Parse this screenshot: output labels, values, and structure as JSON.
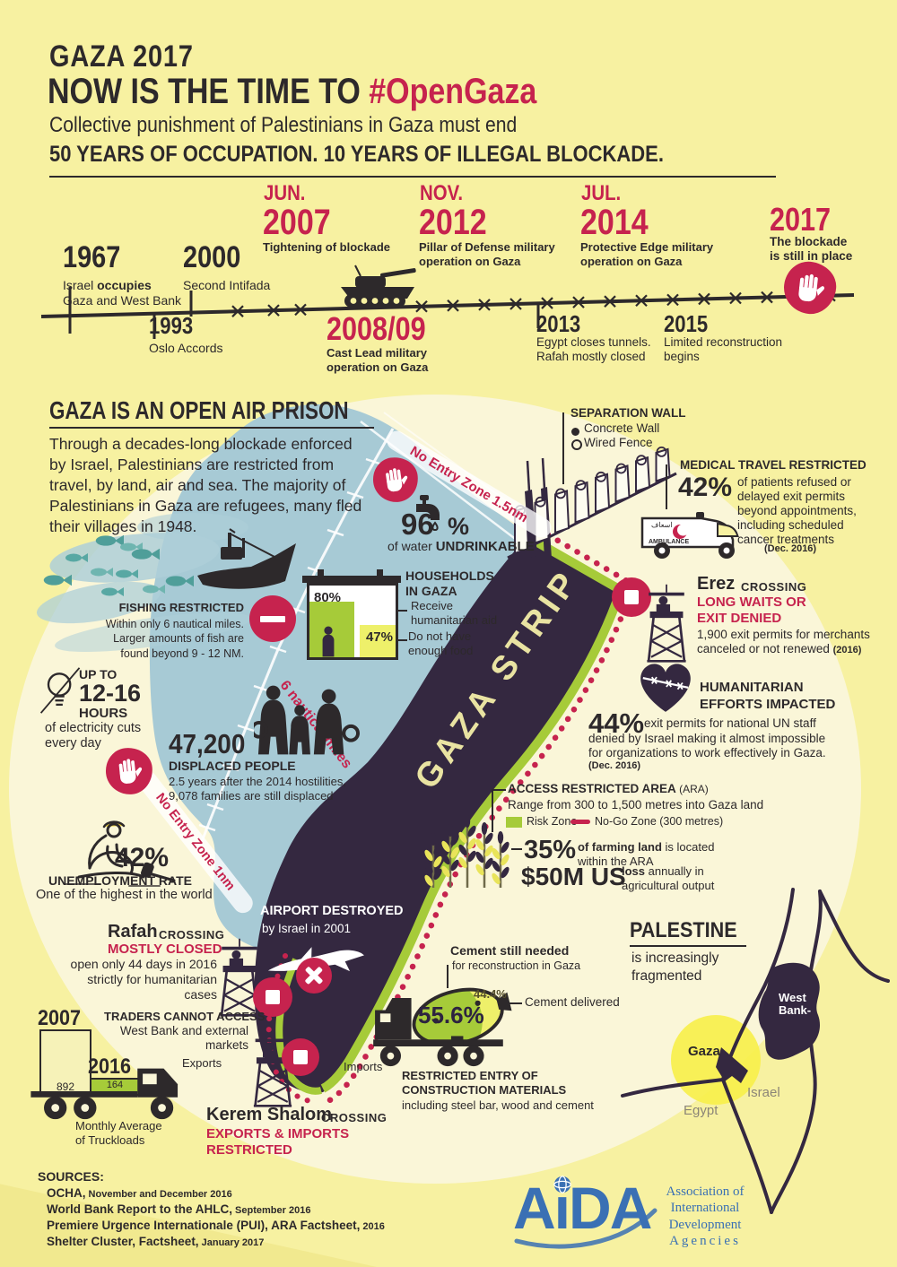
{
  "header": {
    "kicker": "GAZA 2017",
    "title": "NOW IS THE TIME TO ",
    "title_accent": "#OpenGaza",
    "subtitle": "Collective punishment of Palestinians in Gaza must end",
    "banner": "50 YEARS OF OCCUPATION. 10 YEARS OF ILLEGAL BLOCKADE."
  },
  "timeline": {
    "e1967": {
      "year": "1967",
      "l1a": "Israel ",
      "l1b": "occupies",
      "l2": "Gaza and West Bank"
    },
    "e2000": {
      "year": "2000",
      "desc": "Second Intifada"
    },
    "e2007": {
      "month": "JUN.",
      "year": "2007",
      "desc": "Tightening of blockade"
    },
    "e2012": {
      "month": "NOV.",
      "year": "2012",
      "desc": "Pillar of Defense military operation on Gaza"
    },
    "e2014": {
      "month": "JUL.",
      "year": "2014",
      "desc": "Protective Edge military operation on Gaza"
    },
    "e2017": {
      "year": "2017",
      "desc": "The blockade is still in place"
    },
    "e1993": {
      "year": "1993",
      "desc": "Oslo Accords"
    },
    "e200809": {
      "year": "2008/09",
      "desc": "Cast Lead military operation on Gaza"
    },
    "e2013": {
      "year": "2013",
      "desc": "Egypt closes tunnels. Rafah mostly closed"
    },
    "e2015": {
      "year": "2015",
      "desc": "Limited reconstruction begins"
    }
  },
  "prison": {
    "title": "GAZA IS AN OPEN AIR PRISON",
    "body": "Through a decades-long blockade enforced by Israel, Palestinians are restricted from travel, by land, air and sea. The majority of Palestinians in Gaza are refugees, many fled their villages in 1948."
  },
  "wall": {
    "title": "SEPARATION WALL",
    "concrete": "Concrete Wall",
    "wired": "Wired Fence"
  },
  "medical": {
    "title": "MEDICAL TRAVEL RESTRICTED",
    "pct": "42%",
    "body": "of patients refused or delayed exit permits beyond appointments, including scheduled cancer treatments",
    "date": "(Dec. 2016)",
    "amb": "AMBULANCE",
    "amb_ar": "اسعاف"
  },
  "water": {
    "pct": "96",
    "sign": "%",
    "l1": "of water ",
    "l2": "UNDRINKABLE"
  },
  "zones": {
    "z15": "No Entry Zone 1.5nm",
    "z6": "6 nautical miles",
    "z1": "No Entry Zone 1nm"
  },
  "households": {
    "t1": "HOUSEHOLDS",
    "t2": "IN GAZA",
    "p80": "80%",
    "p47": "47%",
    "aid1": "Receive",
    "aid2": "humanitarian aid",
    "food1": "Do not have",
    "food2": "enough food"
  },
  "fishing": {
    "title": "FISHING RESTRICTED",
    "body": "Within only 6 nautical miles. Larger amounts of fish are found beyond 9 - 12 NM."
  },
  "electricity": {
    "up": "UP TO",
    "hrs": "12-16",
    "hours": "HOURS",
    "b1": "of electricity cuts",
    "b2": "every day"
  },
  "displaced": {
    "num": "47,200",
    "label": "DISPLACED PEOPLE",
    "body": "2.5 years after the 2014 hostilities, 9,078 families are still displaced"
  },
  "unemployment": {
    "pct": "42%",
    "label": "UNEMPLOYMENT RATE",
    "body": "One of the highest in the world"
  },
  "gaza_strip": "GAZA STRIP",
  "erez": {
    "name": "Erez",
    "type": "CROSSING",
    "s1": "LONG WAITS OR",
    "s2": "EXIT DENIED",
    "b1": "1,900 exit permits for merchants",
    "b2": "canceled or not renewed ",
    "date": "(2016)"
  },
  "humanitarian": {
    "t1": "HUMANITARIAN",
    "t2": "EFFORTS IMPACTED",
    "pct": "44%",
    "b1": "exit permits for national UN staff",
    "b2": "denied by Israel making it almost impossible for organizations to work effectively in Gaza.",
    "date": "(Dec. 2016)"
  },
  "ara": {
    "title": "ACCESS RESTRICTED AREA",
    "abbr": " (ARA)",
    "range": "Range from 300 to 1,500 metres into Gaza land",
    "risk": "Risk Zone",
    "nogo": "No-Go Zone (300 metres)",
    "pct": "35%",
    "farm_b": "of farming land",
    "farm_r": " is located within the ARA",
    "loss_big": "$50M US",
    "loss_b": "loss",
    "loss_r": " annually in agricultural output"
  },
  "airport": {
    "t": "AIRPORT DESTROYED",
    "s": "by Israel in 2001"
  },
  "rafah": {
    "name": "Rafah",
    "type": "CROSSING",
    "status": "MOSTLY CLOSED",
    "b1": "open only 44 days in 2016",
    "b2": "strictly for humanitarian cases"
  },
  "traders": {
    "t": "TRADERS CANNOT ACCESS",
    "b": "West Bank and external markets",
    "y2007": "2007",
    "v2007": "892",
    "y2016": "2016",
    "v2016": "164",
    "cap1": "Monthly Average",
    "cap2": "of Truckloads",
    "exports": "Exports",
    "imports": "Imports"
  },
  "kerem": {
    "name": "Kerem Shalom",
    "type": "CROSSING",
    "s1": "EXPORTS & IMPORTS",
    "s2": "RESTRICTED"
  },
  "cement": {
    "t1": "Cement still needed",
    "t2": "for reconstruction in Gaza",
    "needed": "55.6%",
    "delivered_pct": "44.4%",
    "delivered": "Cement delivered",
    "r1": "RESTRICTED ENTRY OF",
    "r2": "CONSTRUCTION MATERIALS",
    "r3": "including steel bar, wood and cement"
  },
  "palestine": {
    "title": "PALESTINE",
    "s1": "is increasingly",
    "s2": "fragmented",
    "wb1": "West",
    "wb2": "Bank-",
    "gaza": "Gaza",
    "israel": "Israel",
    "egypt": "Egypt"
  },
  "sources": {
    "label": "SOURCES:",
    "items": [
      {
        "t": "OCHA,",
        "s": " November and December 2016"
      },
      {
        "t": "World Bank Report to the AHLC,",
        "s": " September 2016"
      },
      {
        "t": "Premiere Urgence Internationale (PUI), ARA Factsheet,",
        "s": " 2016"
      },
      {
        "t": "Shelter Cluster, Factsheet,",
        "s": " January 2017"
      }
    ]
  },
  "aida": {
    "a1": "A",
    "i": "ı",
    "d": "D",
    "a2": "A",
    "l1": "Association of",
    "l2": "International",
    "l3": "Development",
    "l4": "Agencies"
  },
  "colors": {
    "background": "#f7f1a1",
    "cream": "#faf6d8",
    "crimson": "#c6234e",
    "dark": "#2d292b",
    "strip_purple": "#342840",
    "sea": "#a7cad5",
    "lime": "#a6cb39",
    "chart_yellow": "#eef06a",
    "aida_blue": "#3a70b4"
  },
  "chart_data": [
    {
      "type": "bar",
      "title": "Households in Gaza",
      "categories": [
        "Receive humanitarian aid",
        "Do not have enough food"
      ],
      "values": [
        80,
        47
      ],
      "unit": "%"
    },
    {
      "type": "bar",
      "title": "Monthly Average of Truckloads",
      "categories": [
        "2007",
        "2016"
      ],
      "values": [
        892,
        164
      ]
    },
    {
      "type": "pie",
      "title": "Cement for reconstruction in Gaza",
      "categories": [
        "Cement still needed",
        "Cement delivered"
      ],
      "values": [
        55.6,
        44.4
      ],
      "unit": "%"
    }
  ]
}
